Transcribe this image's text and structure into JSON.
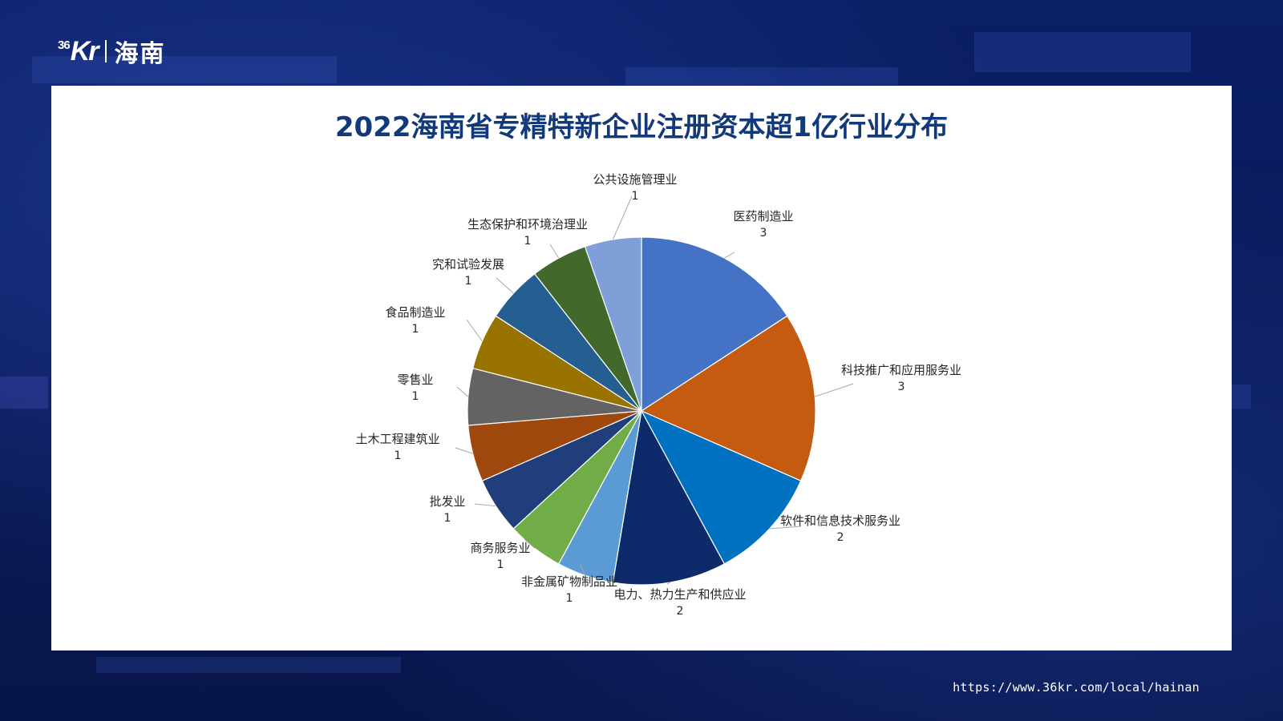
{
  "brand": {
    "logo_mark_sup": "36",
    "logo_mark": "Kr",
    "logo_city": "海南"
  },
  "footer": {
    "url": "https://www.36kr.com/local/hainan"
  },
  "chart_data": {
    "type": "pie",
    "title": "2022海南省专精特新企业注册资本超1亿行业分布",
    "categories": [
      "医药制造业",
      "科技推广和应用服务业",
      "软件和信息技术服务业",
      "电力、热力生产和供应业",
      "非金属矿物制品业",
      "商务服务业",
      "批发业",
      "土木工程建筑业",
      "零售业",
      "食品制造业",
      "究和试验发展",
      "生态保护和环境治理业",
      "公共设施管理业"
    ],
    "values": [
      3,
      3,
      2,
      2,
      1,
      1,
      1,
      1,
      1,
      1,
      1,
      1,
      1
    ],
    "colors": [
      "#4472c4",
      "#c55a11",
      "#0070c0",
      "#0d2b6b",
      "#5b9bd5",
      "#70ad47",
      "#203f7a",
      "#9e480e",
      "#636363",
      "#997300",
      "#255e91",
      "#43682b",
      "#7f9fd8"
    ],
    "data_labels": "category and value, with leader lines",
    "legend": "none"
  }
}
